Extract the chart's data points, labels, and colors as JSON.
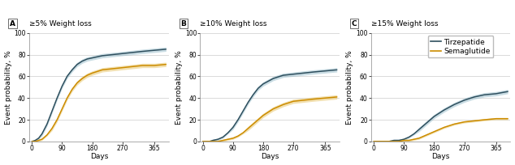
{
  "panels": [
    {
      "label": "A",
      "title": "≥5% Weight loss",
      "tirz": {
        "x": [
          0,
          10,
          20,
          30,
          45,
          60,
          75,
          90,
          105,
          120,
          135,
          150,
          165,
          180,
          210,
          240,
          270,
          300,
          330,
          365,
          400
        ],
        "y": [
          0,
          1,
          3,
          7,
          16,
          28,
          40,
          51,
          60,
          66,
          71,
          74,
          76,
          77,
          79,
          80,
          81,
          82,
          83,
          84,
          85
        ],
        "ci_lo": [
          0,
          0,
          2,
          5,
          14,
          26,
          38,
          49,
          58,
          64,
          69,
          72,
          74,
          75,
          77,
          78,
          79,
          80,
          81,
          82,
          83
        ],
        "ci_hi": [
          0,
          2,
          4,
          9,
          18,
          30,
          42,
          53,
          62,
          68,
          73,
          76,
          78,
          79,
          81,
          82,
          83,
          84,
          85,
          86,
          87
        ]
      },
      "sema": {
        "x": [
          0,
          10,
          20,
          30,
          45,
          60,
          75,
          90,
          105,
          120,
          135,
          150,
          165,
          180,
          210,
          240,
          270,
          300,
          330,
          365,
          400
        ],
        "y": [
          0,
          0,
          1,
          2,
          6,
          12,
          20,
          30,
          40,
          48,
          54,
          58,
          61,
          63,
          66,
          67,
          68,
          69,
          70,
          70,
          71
        ],
        "ci_lo": [
          0,
          0,
          0,
          1,
          5,
          10,
          18,
          28,
          38,
          46,
          52,
          56,
          59,
          61,
          64,
          65,
          66,
          67,
          68,
          68,
          69
        ],
        "ci_hi": [
          0,
          0,
          2,
          3,
          7,
          14,
          22,
          32,
          42,
          50,
          56,
          60,
          63,
          65,
          68,
          69,
          70,
          71,
          72,
          72,
          73
        ]
      }
    },
    {
      "label": "B",
      "title": "≥10% Weight loss",
      "tirz": {
        "x": [
          0,
          10,
          20,
          30,
          45,
          60,
          75,
          90,
          105,
          120,
          135,
          150,
          165,
          180,
          210,
          240,
          270,
          300,
          330,
          365,
          400
        ],
        "y": [
          0,
          0,
          0,
          1,
          2,
          4,
          8,
          13,
          20,
          28,
          36,
          43,
          49,
          53,
          58,
          61,
          62,
          63,
          64,
          65,
          66
        ],
        "ci_lo": [
          0,
          0,
          0,
          0,
          1,
          3,
          7,
          11,
          18,
          26,
          34,
          41,
          47,
          51,
          56,
          59,
          60,
          61,
          62,
          63,
          64
        ],
        "ci_hi": [
          0,
          0,
          0,
          2,
          3,
          5,
          9,
          15,
          22,
          30,
          38,
          45,
          51,
          55,
          60,
          63,
          64,
          65,
          66,
          67,
          68
        ]
      },
      "sema": {
        "x": [
          0,
          10,
          20,
          30,
          45,
          60,
          75,
          90,
          105,
          120,
          135,
          150,
          165,
          180,
          210,
          240,
          270,
          300,
          330,
          365,
          400
        ],
        "y": [
          0,
          0,
          0,
          0,
          0,
          1,
          2,
          3,
          5,
          8,
          12,
          16,
          20,
          24,
          30,
          34,
          37,
          38,
          39,
          40,
          41
        ],
        "ci_lo": [
          0,
          0,
          0,
          0,
          0,
          0,
          1,
          2,
          4,
          7,
          10,
          14,
          18,
          22,
          28,
          32,
          35,
          36,
          37,
          38,
          39
        ],
        "ci_hi": [
          0,
          0,
          0,
          0,
          0,
          2,
          3,
          4,
          6,
          9,
          14,
          18,
          22,
          26,
          32,
          36,
          39,
          40,
          41,
          42,
          43
        ]
      }
    },
    {
      "label": "C",
      "title": "≥15% Weight loss",
      "tirz": {
        "x": [
          0,
          10,
          20,
          30,
          45,
          60,
          75,
          90,
          105,
          120,
          135,
          150,
          165,
          180,
          210,
          240,
          270,
          300,
          330,
          365,
          400
        ],
        "y": [
          0,
          0,
          0,
          0,
          0,
          1,
          1,
          2,
          4,
          7,
          11,
          15,
          19,
          23,
          29,
          34,
          38,
          41,
          43,
          44,
          46
        ],
        "ci_lo": [
          0,
          0,
          0,
          0,
          0,
          0,
          0,
          1,
          3,
          6,
          9,
          13,
          17,
          21,
          27,
          32,
          36,
          39,
          41,
          42,
          44
        ],
        "ci_hi": [
          0,
          0,
          0,
          0,
          0,
          2,
          2,
          3,
          5,
          8,
          13,
          17,
          21,
          25,
          31,
          36,
          40,
          43,
          45,
          46,
          48
        ]
      },
      "sema": {
        "x": [
          0,
          10,
          20,
          30,
          45,
          60,
          75,
          90,
          105,
          120,
          135,
          150,
          165,
          180,
          210,
          240,
          270,
          300,
          330,
          365,
          400
        ],
        "y": [
          0,
          0,
          0,
          0,
          0,
          0,
          0,
          1,
          1,
          2,
          3,
          5,
          7,
          9,
          13,
          16,
          18,
          19,
          20,
          21,
          21
        ],
        "ci_lo": [
          0,
          0,
          0,
          0,
          0,
          0,
          0,
          0,
          0,
          1,
          2,
          4,
          6,
          8,
          12,
          15,
          17,
          18,
          19,
          20,
          20
        ],
        "ci_hi": [
          0,
          0,
          0,
          0,
          0,
          0,
          0,
          2,
          2,
          3,
          4,
          6,
          8,
          10,
          14,
          17,
          19,
          20,
          21,
          22,
          22
        ]
      }
    }
  ],
  "tirz_color": "#2e4f5e",
  "sema_color": "#cc8c00",
  "tirz_ci_color": "#8ab4c4",
  "sema_ci_color": "#e8c870",
  "ylim": [
    0,
    100
  ],
  "yticks": [
    0,
    20,
    40,
    60,
    80,
    100
  ],
  "xticks": [
    0,
    90,
    180,
    270,
    365
  ],
  "xlabel": "Days",
  "ylabel": "Event probability, %",
  "legend_labels": [
    "Tirzepatide",
    "Semaglutide"
  ],
  "background_color": "#ffffff",
  "grid_color": "#cccccc",
  "label_fontsize": 6.5,
  "title_fontsize": 6.5,
  "tick_fontsize": 5.5
}
